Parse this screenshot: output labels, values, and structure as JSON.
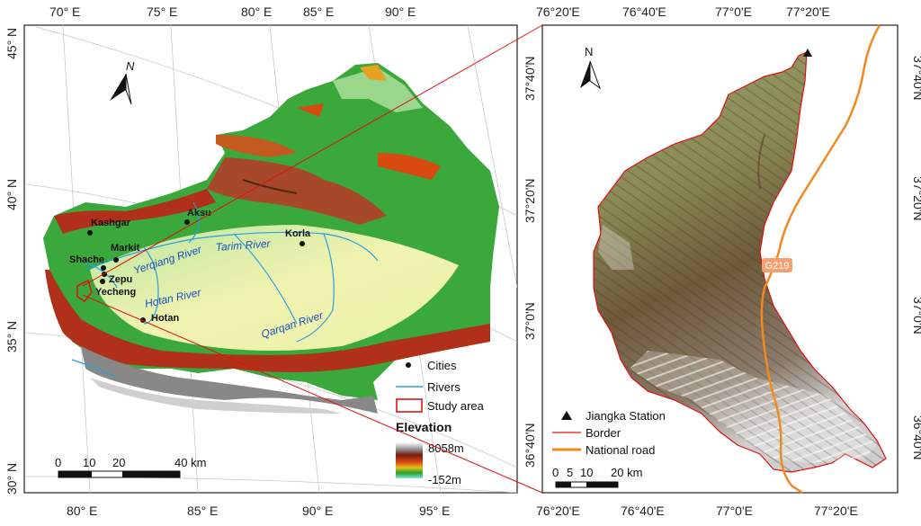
{
  "left_map": {
    "top_ticks": [
      "70° E",
      "75° E",
      "80° E",
      "85° E",
      "90° E"
    ],
    "bottom_ticks": [
      "80° E",
      "85° E",
      "90° E",
      "95° E"
    ],
    "left_ticks": [
      "45° N",
      "40° N",
      "35° N",
      "30° N"
    ],
    "cities": [
      "Kashgar",
      "Aksu",
      "Markit",
      "Shache",
      "Zepu",
      "Yecheng",
      "Hotan",
      "Korla"
    ],
    "rivers": [
      "Yerqiang River",
      "Tarim River",
      "Hotan River",
      "Qarqan River"
    ],
    "north_label": "N",
    "scale": {
      "ticks": [
        "0",
        "10",
        "20",
        "40 km"
      ]
    },
    "legend": {
      "cities": "Cities",
      "rivers": "Rivers",
      "study_area": "Study area",
      "elevation_title": "Elevation",
      "elev_max": "8058m",
      "elev_min": "-152m"
    }
  },
  "right_map": {
    "top_ticks": [
      "76°20'E",
      "76°40'E",
      "77°0'E",
      "77°20'E"
    ],
    "bottom_ticks": [
      "76°20'E",
      "76°40'E",
      "77°0'E",
      "77°20'E"
    ],
    "left_ticks": [
      "37°40'N",
      "37°20'N",
      "37°0'N",
      "36°40'N"
    ],
    "right_ticks": [
      "37°40'N",
      "37°20'N",
      "37°0'N",
      "36°40'N"
    ],
    "north_label": "N",
    "road_label": "G219",
    "scale": {
      "ticks": [
        "0",
        "5",
        "10",
        "20 km"
      ]
    },
    "legend": {
      "station": "Jiangka Station",
      "border": "Border",
      "road": "National road"
    }
  }
}
